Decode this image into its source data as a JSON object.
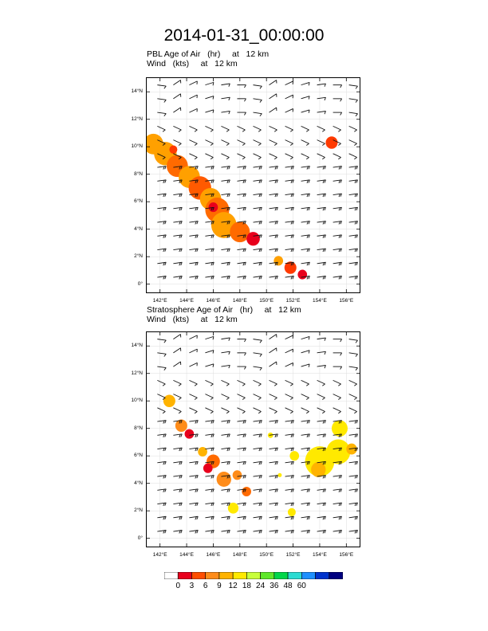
{
  "title": "2014-01-31_00:00:00",
  "panels": [
    {
      "name": "PBL",
      "subtitle_line1": "PBL Age of Air   (hr)     at   12 km",
      "subtitle_line2": "Wind   (kts)     at   12 km"
    },
    {
      "name": "Stratosphere",
      "subtitle_line1": "Stratosphere Age of Air   (hr)     at   12 km",
      "subtitle_line2": "Wind   (kts)     at   12 km"
    }
  ],
  "chart_data": {
    "type": "heatmap",
    "lon_range": [
      141,
      157
    ],
    "lat_range": [
      -0.6,
      15
    ],
    "x_ticks": [
      "142°E",
      "144°E",
      "146°E",
      "148°E",
      "150°E",
      "152°E",
      "154°E",
      "156°E"
    ],
    "x_tick_values": [
      142,
      144,
      146,
      148,
      150,
      152,
      154,
      156
    ],
    "y_ticks": [
      "0°",
      "2°N",
      "4°N",
      "6°N",
      "8°N",
      "10°N",
      "12°N",
      "14°N"
    ],
    "y_tick_values": [
      0,
      2,
      4,
      6,
      8,
      10,
      12,
      14
    ],
    "colorbar": {
      "labels": [
        "0",
        "3",
        "6",
        "9",
        "12",
        "18",
        "24",
        "36",
        "48",
        "60"
      ],
      "colors": [
        "#ffffff",
        "#e8001c",
        "#ff4e00",
        "#ff8c1a",
        "#ffb300",
        "#ffe900",
        "#c8ff3c",
        "#5fe82a",
        "#00d74a",
        "#2bdcd2",
        "#1e90ff",
        "#0033cc",
        "#000080"
      ]
    },
    "pbl_blobs": [
      {
        "lon": 141.5,
        "lat": 10.2,
        "r": 0.75,
        "color": "#ffa000"
      },
      {
        "lon": 142.4,
        "lat": 9.5,
        "r": 0.85,
        "color": "#ffa000"
      },
      {
        "lon": 143.3,
        "lat": 8.6,
        "r": 0.8,
        "color": "#ff6a00"
      },
      {
        "lon": 144.2,
        "lat": 7.8,
        "r": 0.8,
        "color": "#ffa000"
      },
      {
        "lon": 145.0,
        "lat": 7.0,
        "r": 0.85,
        "color": "#ff5a00"
      },
      {
        "lon": 145.8,
        "lat": 6.2,
        "r": 0.8,
        "color": "#ffa000"
      },
      {
        "lon": 146.3,
        "lat": 5.4,
        "r": 0.9,
        "color": "#ff6a00"
      },
      {
        "lon": 146.8,
        "lat": 4.3,
        "r": 0.95,
        "color": "#ffa000"
      },
      {
        "lon": 148.0,
        "lat": 3.8,
        "r": 0.75,
        "color": "#ff6a00"
      },
      {
        "lon": 149.0,
        "lat": 3.3,
        "r": 0.5,
        "color": "#e8001c"
      },
      {
        "lon": 150.9,
        "lat": 1.7,
        "r": 0.35,
        "color": "#ffa000"
      },
      {
        "lon": 151.8,
        "lat": 1.2,
        "r": 0.45,
        "color": "#ff3a00"
      },
      {
        "lon": 152.7,
        "lat": 0.7,
        "r": 0.35,
        "color": "#e8001c"
      },
      {
        "lon": 154.9,
        "lat": 10.3,
        "r": 0.45,
        "color": "#ff3a00"
      },
      {
        "lon": 143.0,
        "lat": 9.8,
        "r": 0.3,
        "color": "#ff3a00"
      },
      {
        "lon": 146.0,
        "lat": 5.6,
        "r": 0.35,
        "color": "#e8001c"
      }
    ],
    "strat_blobs": [
      {
        "lon": 142.7,
        "lat": 10.0,
        "r": 0.45,
        "color": "#ffb300"
      },
      {
        "lon": 143.6,
        "lat": 8.2,
        "r": 0.45,
        "color": "#ff8c1a"
      },
      {
        "lon": 144.2,
        "lat": 7.6,
        "r": 0.35,
        "color": "#e8001c"
      },
      {
        "lon": 145.2,
        "lat": 6.3,
        "r": 0.35,
        "color": "#ffb300"
      },
      {
        "lon": 146.0,
        "lat": 5.6,
        "r": 0.5,
        "color": "#ff6a00"
      },
      {
        "lon": 145.6,
        "lat": 5.1,
        "r": 0.35,
        "color": "#e8001c"
      },
      {
        "lon": 146.8,
        "lat": 4.3,
        "r": 0.55,
        "color": "#ff8c1a"
      },
      {
        "lon": 147.8,
        "lat": 4.6,
        "r": 0.35,
        "color": "#ff8c1a"
      },
      {
        "lon": 148.5,
        "lat": 3.4,
        "r": 0.35,
        "color": "#ff6a00"
      },
      {
        "lon": 147.5,
        "lat": 2.2,
        "r": 0.4,
        "color": "#ffe900"
      },
      {
        "lon": 150.3,
        "lat": 7.5,
        "r": 0.2,
        "color": "#ffe900"
      },
      {
        "lon": 152.1,
        "lat": 6.0,
        "r": 0.35,
        "color": "#ffe900"
      },
      {
        "lon": 151.9,
        "lat": 1.9,
        "r": 0.3,
        "color": "#ffe900"
      },
      {
        "lon": 154.0,
        "lat": 5.6,
        "r": 1.1,
        "color": "#ffe900"
      },
      {
        "lon": 155.4,
        "lat": 6.3,
        "r": 0.9,
        "color": "#ffe900"
      },
      {
        "lon": 155.5,
        "lat": 8.0,
        "r": 0.6,
        "color": "#ffe900"
      },
      {
        "lon": 153.9,
        "lat": 5.0,
        "r": 0.55,
        "color": "#ffb300"
      },
      {
        "lon": 156.4,
        "lat": 6.5,
        "r": 0.4,
        "color": "#ffb300"
      },
      {
        "lon": 151.0,
        "lat": 4.6,
        "r": 0.15,
        "color": "#ffe900"
      }
    ]
  }
}
